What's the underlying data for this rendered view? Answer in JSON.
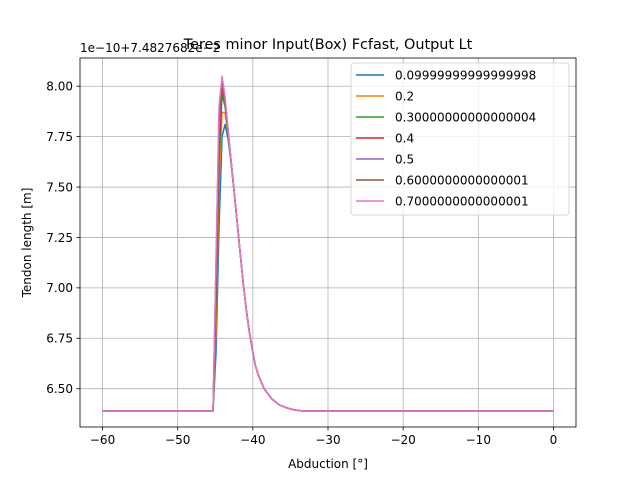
{
  "chart_data": {
    "type": "line",
    "title": "Teres minor Input(Box) Fcfast, Output Lt",
    "xlabel": "Abduction [°]",
    "ylabel": "Tendon length [m]",
    "y_offset_label": "1e−10+7.4827682e−2",
    "xlim": [
      -63,
      3
    ],
    "ylim": [
      6.31,
      8.14
    ],
    "xticks": [
      -60,
      -50,
      -40,
      -30,
      -20,
      -10,
      0
    ],
    "xtick_labels": [
      "−60",
      "−50",
      "−40",
      "−30",
      "−20",
      "−10",
      "0"
    ],
    "yticks": [
      6.5,
      6.75,
      7.0,
      7.25,
      7.5,
      7.75,
      8.0
    ],
    "ytick_labels": [
      "6.50",
      "6.75",
      "7.00",
      "7.25",
      "7.50",
      "7.75",
      "8.00"
    ],
    "grid": true,
    "legend_position": "top-right",
    "series": [
      {
        "name": "0.09999999999999998",
        "color": "#1f77b4",
        "x": [
          -60,
          -45.3,
          -44.9,
          -44.5,
          -44.1,
          -43.7,
          -43.3,
          -42.9,
          -42.5,
          -42.1,
          -41.7,
          -41.3,
          -40.9,
          -40.5,
          -40.1,
          -39.7,
          -39.3,
          -38.5,
          -37.5,
          -36.5,
          -35.5,
          -34.5,
          -33.5,
          0
        ],
        "y": [
          6.39,
          6.39,
          6.68,
          7.3,
          7.75,
          7.81,
          7.74,
          7.62,
          7.48,
          7.33,
          7.18,
          7.03,
          6.9,
          6.79,
          6.7,
          6.62,
          6.57,
          6.5,
          6.45,
          6.42,
          6.405,
          6.395,
          6.39,
          6.39
        ]
      },
      {
        "name": "0.2",
        "color": "#ff7f0e",
        "x": [
          -60,
          -45.3,
          -44.9,
          -44.5,
          -44.1,
          -43.7,
          -43.3,
          -42.9,
          -42.5,
          -42.1,
          -41.7,
          -41.3,
          -40.9,
          -40.5,
          -40.1,
          -39.7,
          -39.3,
          -38.5,
          -37.5,
          -36.5,
          -35.5,
          -34.5,
          -33.5,
          0
        ],
        "y": [
          6.39,
          6.39,
          6.8,
          7.5,
          7.87,
          7.87,
          7.76,
          7.63,
          7.48,
          7.33,
          7.18,
          7.03,
          6.9,
          6.79,
          6.7,
          6.62,
          6.57,
          6.5,
          6.45,
          6.42,
          6.405,
          6.395,
          6.39,
          6.39
        ]
      },
      {
        "name": "0.30000000000000004",
        "color": "#2ca02c",
        "x": [
          -60,
          -45.3,
          -44.9,
          -44.5,
          -44.1,
          -43.7,
          -43.3,
          -42.9,
          -42.5,
          -42.1,
          -41.7,
          -41.3,
          -40.9,
          -40.5,
          -40.1,
          -39.7,
          -39.3,
          -38.5,
          -37.5,
          -36.5,
          -35.5,
          -34.5,
          -33.5,
          0
        ],
        "y": [
          6.39,
          6.39,
          6.9,
          7.62,
          7.96,
          7.9,
          7.77,
          7.63,
          7.48,
          7.33,
          7.18,
          7.03,
          6.9,
          6.79,
          6.7,
          6.62,
          6.57,
          6.5,
          6.45,
          6.42,
          6.405,
          6.395,
          6.39,
          6.39
        ]
      },
      {
        "name": "0.4",
        "color": "#d62728",
        "x": [
          -60,
          -45.3,
          -44.9,
          -44.5,
          -44.1,
          -43.7,
          -43.3,
          -42.9,
          -42.5,
          -42.1,
          -41.7,
          -41.3,
          -40.9,
          -40.5,
          -40.1,
          -39.7,
          -39.3,
          -38.5,
          -37.5,
          -36.5,
          -35.5,
          -34.5,
          -33.5,
          0
        ],
        "y": [
          6.39,
          6.39,
          6.98,
          7.7,
          8.0,
          7.92,
          7.78,
          7.63,
          7.48,
          7.33,
          7.18,
          7.03,
          6.9,
          6.79,
          6.7,
          6.62,
          6.57,
          6.5,
          6.45,
          6.42,
          6.405,
          6.395,
          6.39,
          6.39
        ]
      },
      {
        "name": "0.5",
        "color": "#9467bd",
        "x": [
          -60,
          -45.3,
          -44.9,
          -44.5,
          -44.1,
          -43.7,
          -43.3,
          -42.9,
          -42.5,
          -42.1,
          -41.7,
          -41.3,
          -40.9,
          -40.5,
          -40.1,
          -39.7,
          -39.3,
          -38.5,
          -37.5,
          -36.5,
          -35.5,
          -34.5,
          -33.5,
          0
        ],
        "y": [
          6.39,
          6.39,
          7.05,
          7.78,
          8.03,
          7.93,
          7.78,
          7.63,
          7.48,
          7.33,
          7.18,
          7.03,
          6.9,
          6.79,
          6.7,
          6.62,
          6.57,
          6.5,
          6.45,
          6.42,
          6.405,
          6.395,
          6.39,
          6.39
        ]
      },
      {
        "name": "0.6000000000000001",
        "color": "#8c564b",
        "x": [
          -60,
          -45.3,
          -44.9,
          -44.5,
          -44.1,
          -43.7,
          -43.3,
          -42.9,
          -42.5,
          -42.1,
          -41.7,
          -41.3,
          -40.9,
          -40.5,
          -40.1,
          -39.7,
          -39.3,
          -38.5,
          -37.5,
          -36.5,
          -35.5,
          -34.5,
          -33.5,
          0
        ],
        "y": [
          6.39,
          6.39,
          7.1,
          7.84,
          8.04,
          7.94,
          7.78,
          7.63,
          7.48,
          7.33,
          7.18,
          7.03,
          6.9,
          6.79,
          6.7,
          6.62,
          6.57,
          6.5,
          6.45,
          6.42,
          6.405,
          6.395,
          6.39,
          6.39
        ]
      },
      {
        "name": "0.7000000000000001",
        "color": "#e377c2",
        "x": [
          -60,
          -45.3,
          -44.9,
          -44.5,
          -44.1,
          -43.7,
          -43.3,
          -42.9,
          -42.5,
          -42.1,
          -41.7,
          -41.3,
          -40.9,
          -40.5,
          -40.1,
          -39.7,
          -39.3,
          -38.5,
          -37.5,
          -36.5,
          -35.5,
          -34.5,
          -33.5,
          0
        ],
        "y": [
          6.39,
          6.39,
          7.15,
          7.9,
          8.05,
          7.95,
          7.79,
          7.63,
          7.48,
          7.33,
          7.18,
          7.03,
          6.9,
          6.79,
          6.7,
          6.62,
          6.57,
          6.5,
          6.45,
          6.42,
          6.405,
          6.395,
          6.39,
          6.39
        ]
      }
    ]
  }
}
